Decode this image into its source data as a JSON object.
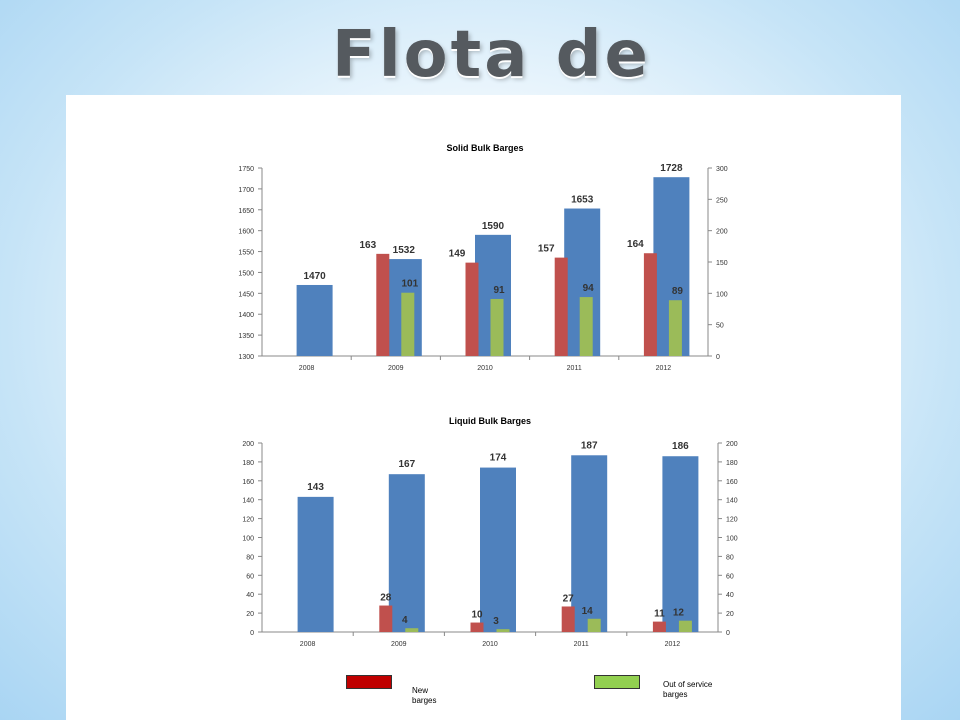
{
  "slide": {
    "title": "Flota de barcazas"
  },
  "chart_data": [
    {
      "type": "bar",
      "title": "Solid Bulk Barges",
      "categories": [
        "2008",
        "2009",
        "2010",
        "2011",
        "2012"
      ],
      "ylim": [
        1300,
        1750
      ],
      "y2lim": [
        0,
        300
      ],
      "yticks": [
        "1300",
        "1350",
        "1400",
        "1450",
        "1500",
        "1550",
        "1600",
        "1650",
        "1700",
        "1750"
      ],
      "y2ticks": [
        "0",
        "50",
        "100",
        "150",
        "200",
        "250",
        "300"
      ],
      "series": [
        {
          "values": [
            1470,
            1532,
            1590,
            1653,
            1728
          ],
          "color": "#4f81bd",
          "axis": "left"
        },
        {
          "values": [
            null,
            163,
            149,
            157,
            164
          ],
          "color": "#c0504d",
          "axis": "right"
        },
        {
          "values": [
            null,
            101,
            91,
            94,
            89
          ],
          "color": "#9bbb59",
          "axis": "right"
        }
      ]
    },
    {
      "type": "bar",
      "title": "Liquid Bulk Barges",
      "categories": [
        "2008",
        "2009",
        "2010",
        "2011",
        "2012"
      ],
      "ylim": [
        0,
        200
      ],
      "y2lim": [
        0,
        200
      ],
      "yticks": [
        "0",
        "20",
        "40",
        "60",
        "80",
        "100",
        "120",
        "140",
        "160",
        "180",
        "200"
      ],
      "y2ticks": [
        "0",
        "20",
        "40",
        "60",
        "80",
        "100",
        "120",
        "140",
        "160",
        "180",
        "200"
      ],
      "series": [
        {
          "values": [
            143,
            167,
            174,
            187,
            186
          ],
          "color": "#4f81bd",
          "axis": "left"
        },
        {
          "values": [
            null,
            28,
            10,
            27,
            11
          ],
          "color": "#c0504d",
          "axis": "right"
        },
        {
          "values": [
            null,
            4,
            3,
            14,
            12
          ],
          "color": "#9bbb59",
          "axis": "right"
        }
      ]
    }
  ],
  "legend": {
    "new": {
      "label": "New barges",
      "color": "#c00000"
    },
    "out": {
      "label": "Out of service barges",
      "color": "#92d050"
    }
  }
}
